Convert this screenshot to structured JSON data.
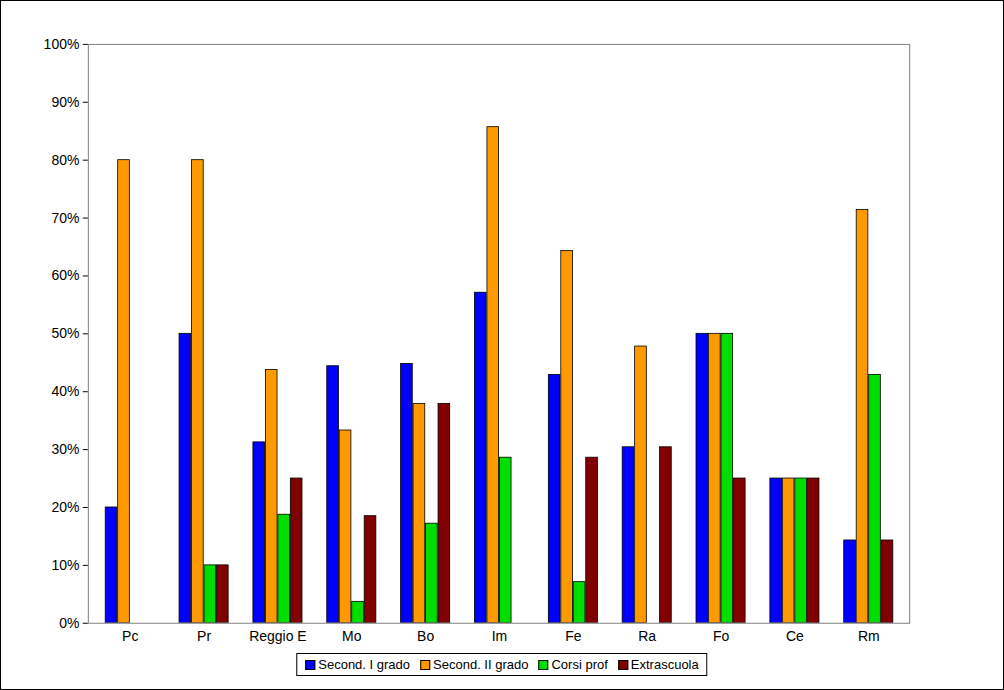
{
  "chart_data": {
    "type": "bar",
    "categories": [
      "Pc",
      "Pr",
      "Reggio E",
      "Mo",
      "Bo",
      "Im",
      "Fe",
      "Ra",
      "Fo",
      "Ce",
      "Rm"
    ],
    "series": [
      {
        "name": "Second. I grado",
        "color": "#0000ff",
        "values": [
          20,
          50,
          31.25,
          44.4,
          44.8,
          57.1,
          42.9,
          30.4,
          50,
          25,
          14.3
        ]
      },
      {
        "name": "Second. II grado",
        "color": "#ff9900",
        "values": [
          80,
          80,
          43.75,
          33.3,
          37.9,
          85.7,
          64.3,
          47.8,
          50,
          25,
          71.4
        ]
      },
      {
        "name": "Corsi prof",
        "color": "#00dd00",
        "values": [
          0,
          10,
          18.75,
          3.7,
          17.2,
          28.6,
          7.1,
          0,
          50,
          25,
          42.9
        ]
      },
      {
        "name": "Extrascuola",
        "color": "#800000",
        "values": [
          0,
          10,
          25,
          18.5,
          37.9,
          0,
          28.6,
          30.4,
          25,
          25,
          14.3
        ]
      }
    ],
    "ylim": [
      0,
      100
    ],
    "yticks": [
      {
        "value": 0,
        "label": "0%"
      },
      {
        "value": 10,
        "label": "10%"
      },
      {
        "value": 20,
        "label": "20%"
      },
      {
        "value": 30,
        "label": "30%"
      },
      {
        "value": 40,
        "label": "40%"
      },
      {
        "value": 50,
        "label": "50%"
      },
      {
        "value": 60,
        "label": "60%"
      },
      {
        "value": 70,
        "label": "70%"
      },
      {
        "value": 80,
        "label": "80%"
      },
      {
        "value": 90,
        "label": "90%"
      },
      {
        "value": 100,
        "label": "100%"
      }
    ],
    "grid": false,
    "legend": "bottom"
  }
}
